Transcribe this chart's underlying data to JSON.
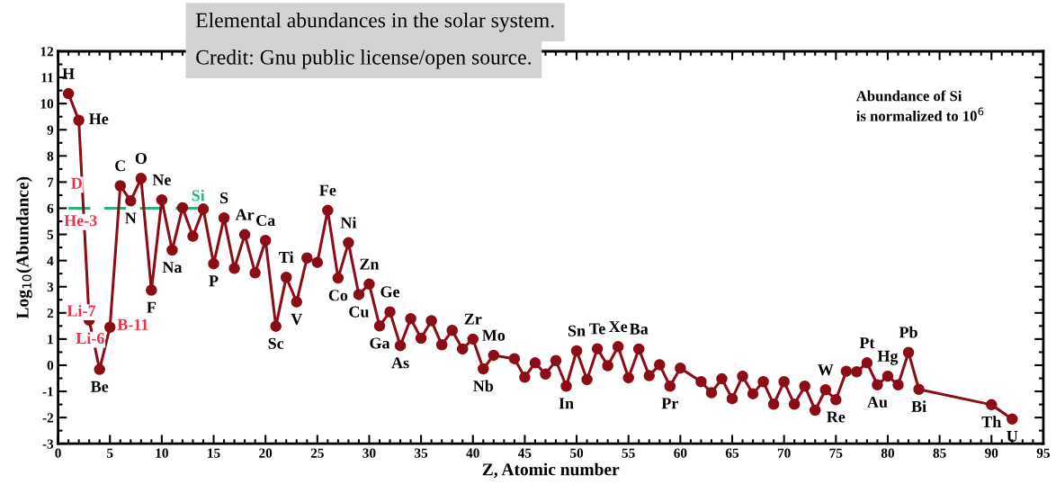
{
  "chart_data": {
    "type": "line",
    "title": "Elemental abundances in the solar system.",
    "xlabel": "Z, Atomic number",
    "ylabel": "Log$_{10}$(Abundance)",
    "xlim": [
      0,
      95
    ],
    "xticks": [
      0,
      5,
      10,
      15,
      20,
      25,
      30,
      35,
      40,
      45,
      50,
      55,
      60,
      65,
      70,
      75,
      80,
      85,
      90,
      95
    ],
    "ylim": [
      -3,
      12
    ],
    "yticks": [
      -3,
      -2,
      -1,
      0,
      1,
      2,
      3,
      4,
      5,
      6,
      7,
      8,
      9,
      10,
      11,
      12
    ],
    "grid": false,
    "legend": false,
    "marker": "circle",
    "line_style": "solid",
    "series": [
      {
        "color": "#8b0d16",
        "x": [
          1,
          2,
          3,
          4,
          5,
          6,
          7,
          8,
          9,
          10,
          11,
          12,
          13,
          14,
          15,
          16,
          17,
          18,
          19,
          20,
          21,
          22,
          23,
          24,
          25,
          26,
          27,
          28,
          29,
          30,
          31,
          32,
          33,
          34,
          35,
          36,
          37,
          38,
          39,
          40,
          41,
          42,
          44,
          45,
          46,
          47,
          48,
          49,
          50,
          51,
          52,
          53,
          54,
          55,
          56,
          57,
          58,
          59,
          60,
          62,
          63,
          64,
          65,
          66,
          67,
          68,
          69,
          70,
          71,
          72,
          73,
          74,
          75,
          76,
          77,
          78,
          79,
          80,
          81,
          82,
          83,
          90,
          92
        ],
        "values": [
          10.38,
          9.36,
          1.72,
          -0.16,
          1.45,
          6.86,
          6.28,
          7.14,
          2.87,
          6.32,
          4.4,
          6.02,
          4.93,
          5.97,
          3.88,
          5.63,
          3.7,
          4.99,
          3.53,
          4.77,
          1.49,
          3.36,
          2.42,
          4.1,
          3.93,
          5.92,
          3.33,
          4.68,
          2.7,
          3.1,
          1.5,
          2.04,
          0.75,
          1.78,
          1.03,
          1.7,
          0.78,
          1.33,
          0.62,
          1.0,
          -0.14,
          0.38,
          0.25,
          -0.46,
          0.09,
          -0.34,
          0.18,
          -0.8,
          0.55,
          -0.55,
          0.63,
          -0.02,
          0.71,
          -0.48,
          0.62,
          -0.4,
          0.02,
          -0.8,
          -0.11,
          -0.63,
          -1.05,
          -0.52,
          -1.28,
          -0.42,
          -1.09,
          -0.63,
          -1.49,
          -0.63,
          -1.49,
          -0.8,
          -1.72,
          -0.94,
          -1.32,
          -0.23,
          -0.25,
          0.09,
          -0.75,
          -0.42,
          -0.75,
          0.49,
          -0.92,
          -1.51,
          -2.06
        ]
      },
      {
        "name": "Si",
        "type": "line",
        "color": "#2db37a",
        "line_style": "dashed",
        "marker": "none",
        "x": [
          1,
          14
        ],
        "values": [
          6,
          6
        ]
      }
    ],
    "annotations": [
      "Credit: Gnu public license/open source.",
      "Abundance of Si\nis normalized to 10$^{6}$",
      {
        "text": "H",
        "x": 1,
        "y": 10.38
      },
      {
        "text": "He",
        "x": 2,
        "y": 9.36
      },
      {
        "text": "Be",
        "x": 4,
        "y": -0.16
      },
      {
        "text": "C",
        "x": 6,
        "y": 6.86
      },
      {
        "text": "N",
        "x": 7,
        "y": 6.28
      },
      {
        "text": "O",
        "x": 8,
        "y": 7.14
      },
      {
        "text": "F",
        "x": 9,
        "y": 2.87
      },
      {
        "text": "Ne",
        "x": 10,
        "y": 6.32
      },
      {
        "text": "Na",
        "x": 11,
        "y": 4.4
      },
      {
        "text": "P",
        "x": 15,
        "y": 3.88
      },
      {
        "text": "S",
        "x": 16,
        "y": 5.63
      },
      {
        "text": "Ar",
        "x": 18,
        "y": 4.99
      },
      {
        "text": "Ca",
        "x": 20,
        "y": 4.77
      },
      {
        "text": "Sc",
        "x": 21,
        "y": 1.49
      },
      {
        "text": "Ti",
        "x": 22,
        "y": 3.36
      },
      {
        "text": "V",
        "x": 23,
        "y": 2.42
      },
      {
        "text": "Fe",
        "x": 26,
        "y": 5.92
      },
      {
        "text": "Co",
        "x": 27,
        "y": 3.33
      },
      {
        "text": "Ni",
        "x": 28,
        "y": 4.68
      },
      {
        "text": "Cu",
        "x": 29,
        "y": 2.7
      },
      {
        "text": "Zn",
        "x": 30,
        "y": 3.1
      },
      {
        "text": "Ga",
        "x": 31,
        "y": 1.5
      },
      {
        "text": "Ge",
        "x": 32,
        "y": 2.04
      },
      {
        "text": "As",
        "x": 33,
        "y": 0.75
      },
      {
        "text": "Zr",
        "x": 40,
        "y": 1.0
      },
      {
        "text": "Nb",
        "x": 41,
        "y": -0.14
      },
      {
        "text": "Mo",
        "x": 42,
        "y": 0.38
      },
      {
        "text": "In",
        "x": 49,
        "y": -0.8
      },
      {
        "text": "Sn",
        "x": 50,
        "y": 0.55
      },
      {
        "text": "Te",
        "x": 52,
        "y": 0.63
      },
      {
        "text": "Xe",
        "x": 54,
        "y": 0.71
      },
      {
        "text": "Ba",
        "x": 56,
        "y": 0.62
      },
      {
        "text": "Pr",
        "x": 59,
        "y": -0.8
      },
      {
        "text": "W",
        "x": 74,
        "y": -0.94
      },
      {
        "text": "Re",
        "x": 75,
        "y": -1.32
      },
      {
        "text": "Pt",
        "x": 78,
        "y": 0.09
      },
      {
        "text": "Au",
        "x": 79,
        "y": -0.75
      },
      {
        "text": "Hg",
        "x": 80,
        "y": -0.42
      },
      {
        "text": "Pb",
        "x": 82,
        "y": 0.49
      },
      {
        "text": "Bi",
        "x": 83,
        "y": -0.92
      },
      {
        "text": "Th",
        "x": 90,
        "y": -1.51
      },
      {
        "text": "U",
        "x": 92,
        "y": -2.06
      },
      "D",
      "He-3",
      "Li-7",
      "Li-6",
      "B-11"
    ]
  }
}
